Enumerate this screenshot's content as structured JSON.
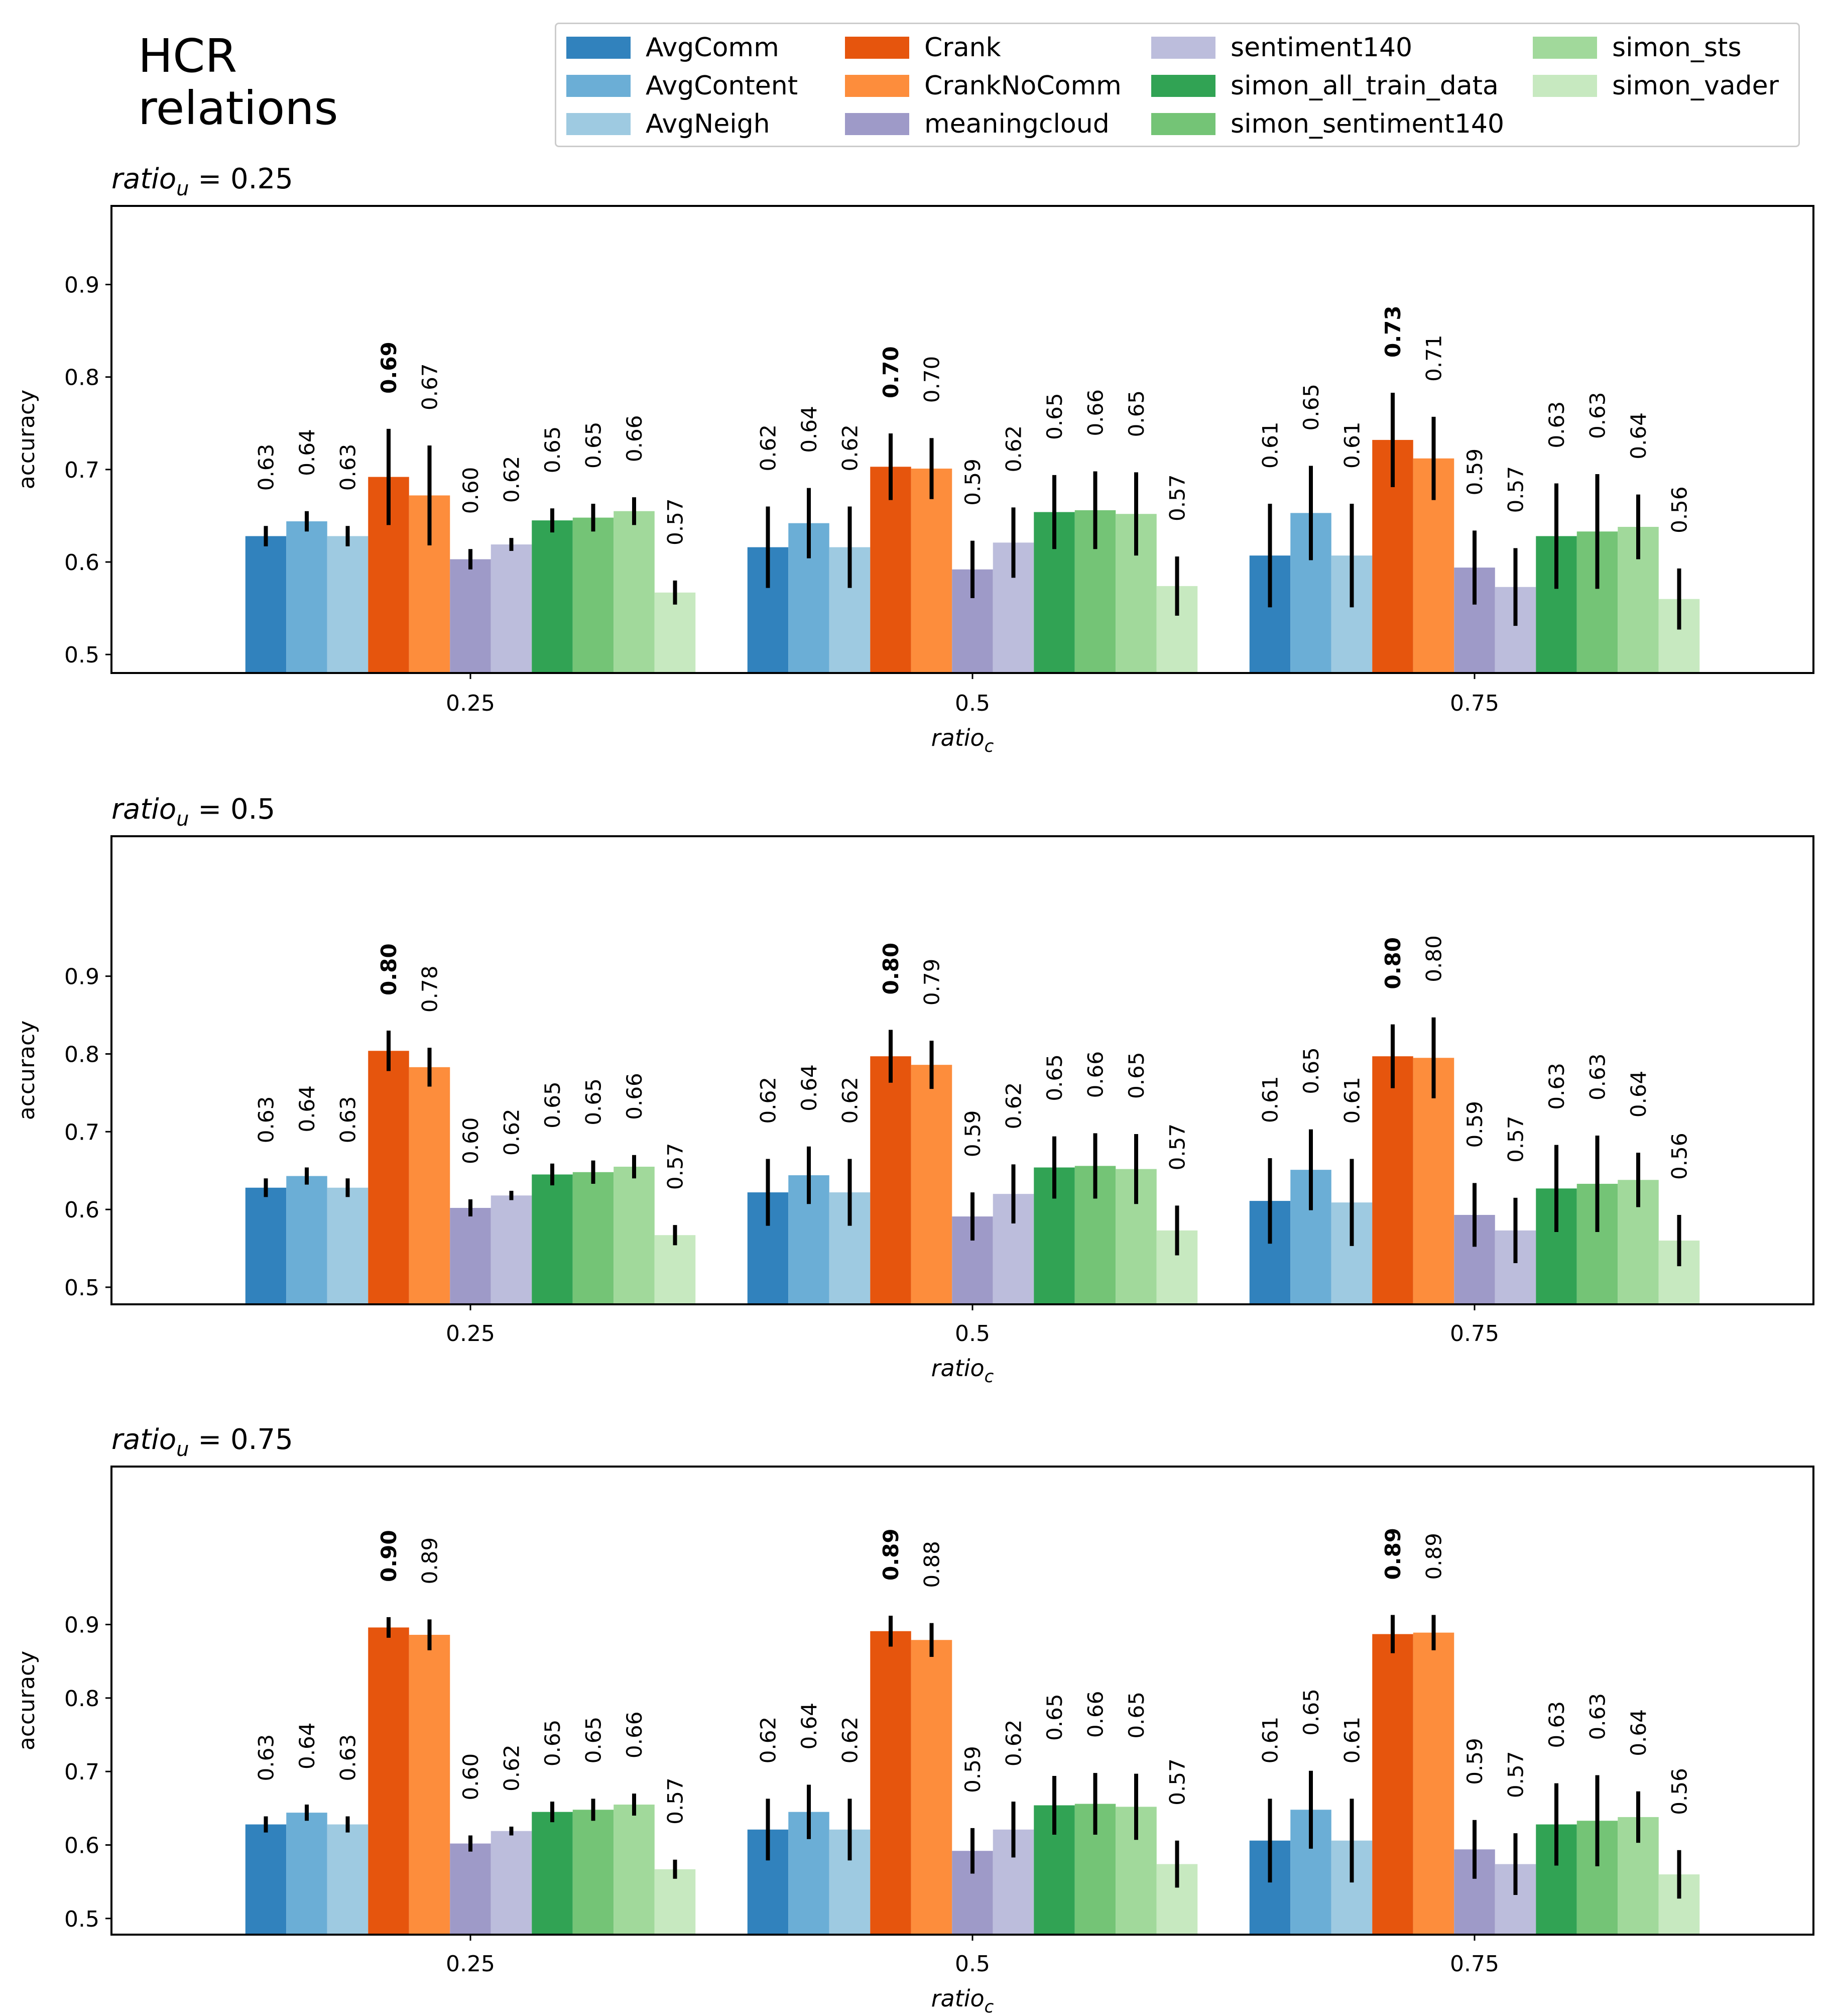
{
  "figure": {
    "title": "HCR\nrelations"
  },
  "colors": {
    "AvgComm": "#3182bd",
    "AvgContent": "#6baed6",
    "AvgNeigh": "#9ecae1",
    "Crank": "#e6550d",
    "CrankNoComm": "#fd8d3c",
    "meaningcloud": "#9e9ac8",
    "sentiment140": "#bcbddc",
    "simon_all_train_data": "#31a354",
    "simon_sentiment140": "#74c476",
    "simon_sts": "#a1d99b",
    "simon_vader": "#c7e9c0"
  },
  "legend": {
    "items": [
      {
        "label": "AvgComm",
        "series": "AvgComm"
      },
      {
        "label": "AvgContent",
        "series": "AvgContent"
      },
      {
        "label": "AvgNeigh",
        "series": "AvgNeigh"
      },
      {
        "label": "Crank",
        "series": "Crank"
      },
      {
        "label": "CrankNoComm",
        "series": "CrankNoComm"
      },
      {
        "label": "meaningcloud",
        "series": "meaningcloud"
      },
      {
        "label": "sentiment140",
        "series": "sentiment140"
      },
      {
        "label": "simon_all_train_data",
        "series": "simon_all_train_data"
      },
      {
        "label": "simon_sentiment140",
        "series": "simon_sentiment140"
      },
      {
        "label": "simon_sts",
        "series": "simon_sts"
      },
      {
        "label": "simon_vader",
        "series": "simon_vader"
      }
    ]
  },
  "chart_data": [
    {
      "type": "bar",
      "title": "ratio_u = 0.25",
      "title_parts": {
        "base": "ratio",
        "sub": "u",
        "rest": " = 0.25"
      },
      "xlabel_parts": {
        "base": "ratio",
        "sub": "c"
      },
      "ylabel": "accuracy",
      "ylim": [
        0.48,
        0.985
      ],
      "yticks": [
        "0.5",
        "0.6",
        "0.7",
        "0.8",
        "0.9"
      ],
      "categories": [
        "0.25",
        "0.5",
        "0.75"
      ],
      "series": [
        {
          "name": "AvgComm",
          "values": [
            0.628,
            0.616,
            0.607
          ],
          "errors": [
            0.011,
            0.044,
            0.056
          ],
          "labels": [
            "0.63",
            "0.62",
            "0.61"
          ]
        },
        {
          "name": "AvgContent",
          "values": [
            0.644,
            0.642,
            0.653
          ],
          "errors": [
            0.011,
            0.038,
            0.051
          ],
          "labels": [
            "0.64",
            "0.64",
            "0.65"
          ]
        },
        {
          "name": "AvgNeigh",
          "values": [
            0.628,
            0.616,
            0.607
          ],
          "errors": [
            0.011,
            0.044,
            0.056
          ],
          "labels": [
            "0.63",
            "0.62",
            "0.61"
          ]
        },
        {
          "name": "Crank",
          "values": [
            0.692,
            0.703,
            0.732
          ],
          "errors": [
            0.052,
            0.036,
            0.051
          ],
          "labels": [
            "0.69",
            "0.70",
            "0.73"
          ],
          "bold": true
        },
        {
          "name": "CrankNoComm",
          "values": [
            0.672,
            0.701,
            0.712
          ],
          "errors": [
            0.054,
            0.033,
            0.045
          ],
          "labels": [
            "0.67",
            "0.70",
            "0.71"
          ]
        },
        {
          "name": "meaningcloud",
          "values": [
            0.603,
            0.592,
            0.594
          ],
          "errors": [
            0.011,
            0.031,
            0.04
          ],
          "labels": [
            "0.60",
            "0.59",
            "0.59"
          ]
        },
        {
          "name": "sentiment140",
          "values": [
            0.619,
            0.621,
            0.573
          ],
          "errors": [
            0.007,
            0.038,
            0.042
          ],
          "labels": [
            "0.62",
            "0.62",
            "0.57"
          ]
        },
        {
          "name": "simon_all_train_data",
          "values": [
            0.645,
            0.654,
            0.628
          ],
          "errors": [
            0.013,
            0.04,
            0.057
          ],
          "labels": [
            "0.65",
            "0.65",
            "0.63"
          ]
        },
        {
          "name": "simon_sentiment140",
          "values": [
            0.648,
            0.656,
            0.633
          ],
          "errors": [
            0.015,
            0.042,
            0.062
          ],
          "labels": [
            "0.65",
            "0.66",
            "0.63"
          ]
        },
        {
          "name": "simon_sts",
          "values": [
            0.655,
            0.652,
            0.638
          ],
          "errors": [
            0.015,
            0.045,
            0.035
          ],
          "labels": [
            "0.66",
            "0.65",
            "0.64"
          ]
        },
        {
          "name": "simon_vader",
          "values": [
            0.567,
            0.574,
            0.56
          ],
          "errors": [
            0.013,
            0.032,
            0.033
          ],
          "labels": [
            "0.57",
            "0.57",
            "0.56"
          ]
        }
      ]
    },
    {
      "type": "bar",
      "title": "ratio_u = 0.5",
      "title_parts": {
        "base": "ratio",
        "sub": "u",
        "rest": " = 0.5"
      },
      "xlabel_parts": {
        "base": "ratio",
        "sub": "c"
      },
      "ylabel": "accuracy",
      "ylim": [
        0.478,
        1.08
      ],
      "yticks": [
        "0.5",
        "0.6",
        "0.7",
        "0.8",
        "0.9"
      ],
      "categories": [
        "0.25",
        "0.5",
        "0.75"
      ],
      "series": [
        {
          "name": "AvgComm",
          "values": [
            0.628,
            0.622,
            0.611
          ],
          "errors": [
            0.012,
            0.043,
            0.055
          ],
          "labels": [
            "0.63",
            "0.62",
            "0.61"
          ]
        },
        {
          "name": "AvgContent",
          "values": [
            0.643,
            0.644,
            0.651
          ],
          "errors": [
            0.011,
            0.037,
            0.052
          ],
          "labels": [
            "0.64",
            "0.64",
            "0.65"
          ]
        },
        {
          "name": "AvgNeigh",
          "values": [
            0.628,
            0.622,
            0.609
          ],
          "errors": [
            0.012,
            0.043,
            0.056
          ],
          "labels": [
            "0.63",
            "0.62",
            "0.61"
          ]
        },
        {
          "name": "Crank",
          "values": [
            0.804,
            0.797,
            0.797
          ],
          "errors": [
            0.026,
            0.034,
            0.041
          ],
          "labels": [
            "0.80",
            "0.80",
            "0.80"
          ],
          "bold": true
        },
        {
          "name": "CrankNoComm",
          "values": [
            0.783,
            0.786,
            0.795
          ],
          "errors": [
            0.025,
            0.031,
            0.052
          ],
          "labels": [
            "0.78",
            "0.79",
            "0.80"
          ]
        },
        {
          "name": "meaningcloud",
          "values": [
            0.602,
            0.591,
            0.593
          ],
          "errors": [
            0.011,
            0.031,
            0.041
          ],
          "labels": [
            "0.60",
            "0.59",
            "0.59"
          ]
        },
        {
          "name": "sentiment140",
          "values": [
            0.618,
            0.62,
            0.573
          ],
          "errors": [
            0.006,
            0.038,
            0.042
          ],
          "labels": [
            "0.62",
            "0.62",
            "0.57"
          ]
        },
        {
          "name": "simon_all_train_data",
          "values": [
            0.645,
            0.654,
            0.627
          ],
          "errors": [
            0.014,
            0.04,
            0.056
          ],
          "labels": [
            "0.65",
            "0.65",
            "0.63"
          ]
        },
        {
          "name": "simon_sentiment140",
          "values": [
            0.648,
            0.656,
            0.633
          ],
          "errors": [
            0.015,
            0.042,
            0.062
          ],
          "labels": [
            "0.65",
            "0.66",
            "0.63"
          ]
        },
        {
          "name": "simon_sts",
          "values": [
            0.655,
            0.652,
            0.638
          ],
          "errors": [
            0.015,
            0.045,
            0.035
          ],
          "labels": [
            "0.66",
            "0.65",
            "0.64"
          ]
        },
        {
          "name": "simon_vader",
          "values": [
            0.567,
            0.573,
            0.56
          ],
          "errors": [
            0.013,
            0.032,
            0.033
          ],
          "labels": [
            "0.57",
            "0.57",
            "0.56"
          ]
        }
      ]
    },
    {
      "type": "bar",
      "title": "ratio_u = 0.75",
      "title_parts": {
        "base": "ratio",
        "sub": "u",
        "rest": " = 0.75"
      },
      "xlabel_parts": {
        "base": "ratio",
        "sub": "c"
      },
      "ylabel": "accuracy",
      "ylim": [
        0.478,
        1.115
      ],
      "yticks": [
        "0.5",
        "0.6",
        "0.7",
        "0.8",
        "0.9"
      ],
      "categories": [
        "0.25",
        "0.5",
        "0.75"
      ],
      "series": [
        {
          "name": "AvgComm",
          "values": [
            0.628,
            0.621,
            0.606
          ],
          "errors": [
            0.011,
            0.042,
            0.057
          ],
          "labels": [
            "0.63",
            "0.62",
            "0.61"
          ]
        },
        {
          "name": "AvgContent",
          "values": [
            0.644,
            0.645,
            0.648
          ],
          "errors": [
            0.011,
            0.037,
            0.053
          ],
          "labels": [
            "0.64",
            "0.64",
            "0.65"
          ]
        },
        {
          "name": "AvgNeigh",
          "values": [
            0.628,
            0.621,
            0.606
          ],
          "errors": [
            0.011,
            0.042,
            0.057
          ],
          "labels": [
            "0.63",
            "0.62",
            "0.61"
          ]
        },
        {
          "name": "Crank",
          "values": [
            0.896,
            0.891,
            0.887
          ],
          "errors": [
            0.014,
            0.021,
            0.026
          ],
          "labels": [
            "0.90",
            "0.89",
            "0.89"
          ],
          "bold": true
        },
        {
          "name": "CrankNoComm",
          "values": [
            0.886,
            0.879,
            0.889
          ],
          "errors": [
            0.021,
            0.023,
            0.024
          ],
          "labels": [
            "0.89",
            "0.88",
            "0.89"
          ]
        },
        {
          "name": "meaningcloud",
          "values": [
            0.602,
            0.592,
            0.594
          ],
          "errors": [
            0.011,
            0.031,
            0.04
          ],
          "labels": [
            "0.60",
            "0.59",
            "0.59"
          ]
        },
        {
          "name": "sentiment140",
          "values": [
            0.619,
            0.621,
            0.574
          ],
          "errors": [
            0.006,
            0.038,
            0.042
          ],
          "labels": [
            "0.62",
            "0.62",
            "0.57"
          ]
        },
        {
          "name": "simon_all_train_data",
          "values": [
            0.645,
            0.654,
            0.628
          ],
          "errors": [
            0.014,
            0.04,
            0.056
          ],
          "labels": [
            "0.65",
            "0.65",
            "0.63"
          ]
        },
        {
          "name": "simon_sentiment140",
          "values": [
            0.648,
            0.656,
            0.633
          ],
          "errors": [
            0.015,
            0.042,
            0.062
          ],
          "labels": [
            "0.65",
            "0.66",
            "0.63"
          ]
        },
        {
          "name": "simon_sts",
          "values": [
            0.655,
            0.652,
            0.638
          ],
          "errors": [
            0.015,
            0.045,
            0.035
          ],
          "labels": [
            "0.66",
            "0.65",
            "0.64"
          ]
        },
        {
          "name": "simon_vader",
          "values": [
            0.567,
            0.574,
            0.56
          ],
          "errors": [
            0.013,
            0.032,
            0.033
          ],
          "labels": [
            "0.57",
            "0.57",
            "0.56"
          ]
        }
      ]
    }
  ]
}
